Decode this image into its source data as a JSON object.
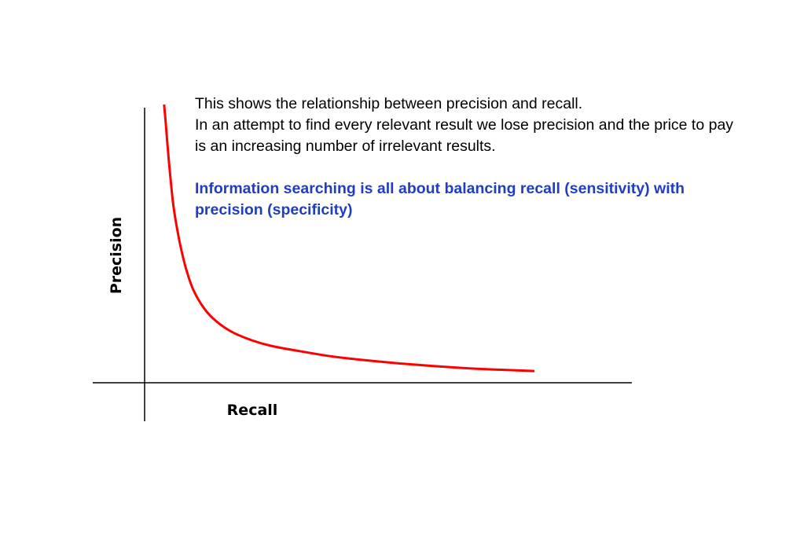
{
  "chart_data": {
    "type": "line",
    "xlabel": "Recall",
    "ylabel": "Precision",
    "ylim": [
      0,
      1
    ],
    "xlim": [
      0,
      1
    ],
    "grid": false,
    "line_color": "#ff0000",
    "series": [
      {
        "x": [
          0.04,
          0.045,
          0.05,
          0.055,
          0.06,
          0.07,
          0.08,
          0.09,
          0.1,
          0.12,
          0.14,
          0.17,
          0.2,
          0.24,
          0.28,
          0.33,
          0.38,
          0.44,
          0.5,
          0.56,
          0.62,
          0.68,
          0.74,
          0.8
        ],
        "y": [
          1.0,
          0.9,
          0.79,
          0.7,
          0.62,
          0.52,
          0.44,
          0.38,
          0.33,
          0.27,
          0.23,
          0.19,
          0.165,
          0.14,
          0.125,
          0.11,
          0.095,
          0.083,
          0.073,
          0.064,
          0.057,
          0.05,
          0.046,
          0.042
        ]
      }
    ]
  },
  "text": {
    "line1": "This shows the relationship between precision and recall.",
    "line2": "In an attempt to find every relevant result we lose precision and the price to pay is an increasing number of irrelevant results.",
    "emphasis": "Information searching is all about balancing recall (sensitivity) with precision (specificity)"
  }
}
